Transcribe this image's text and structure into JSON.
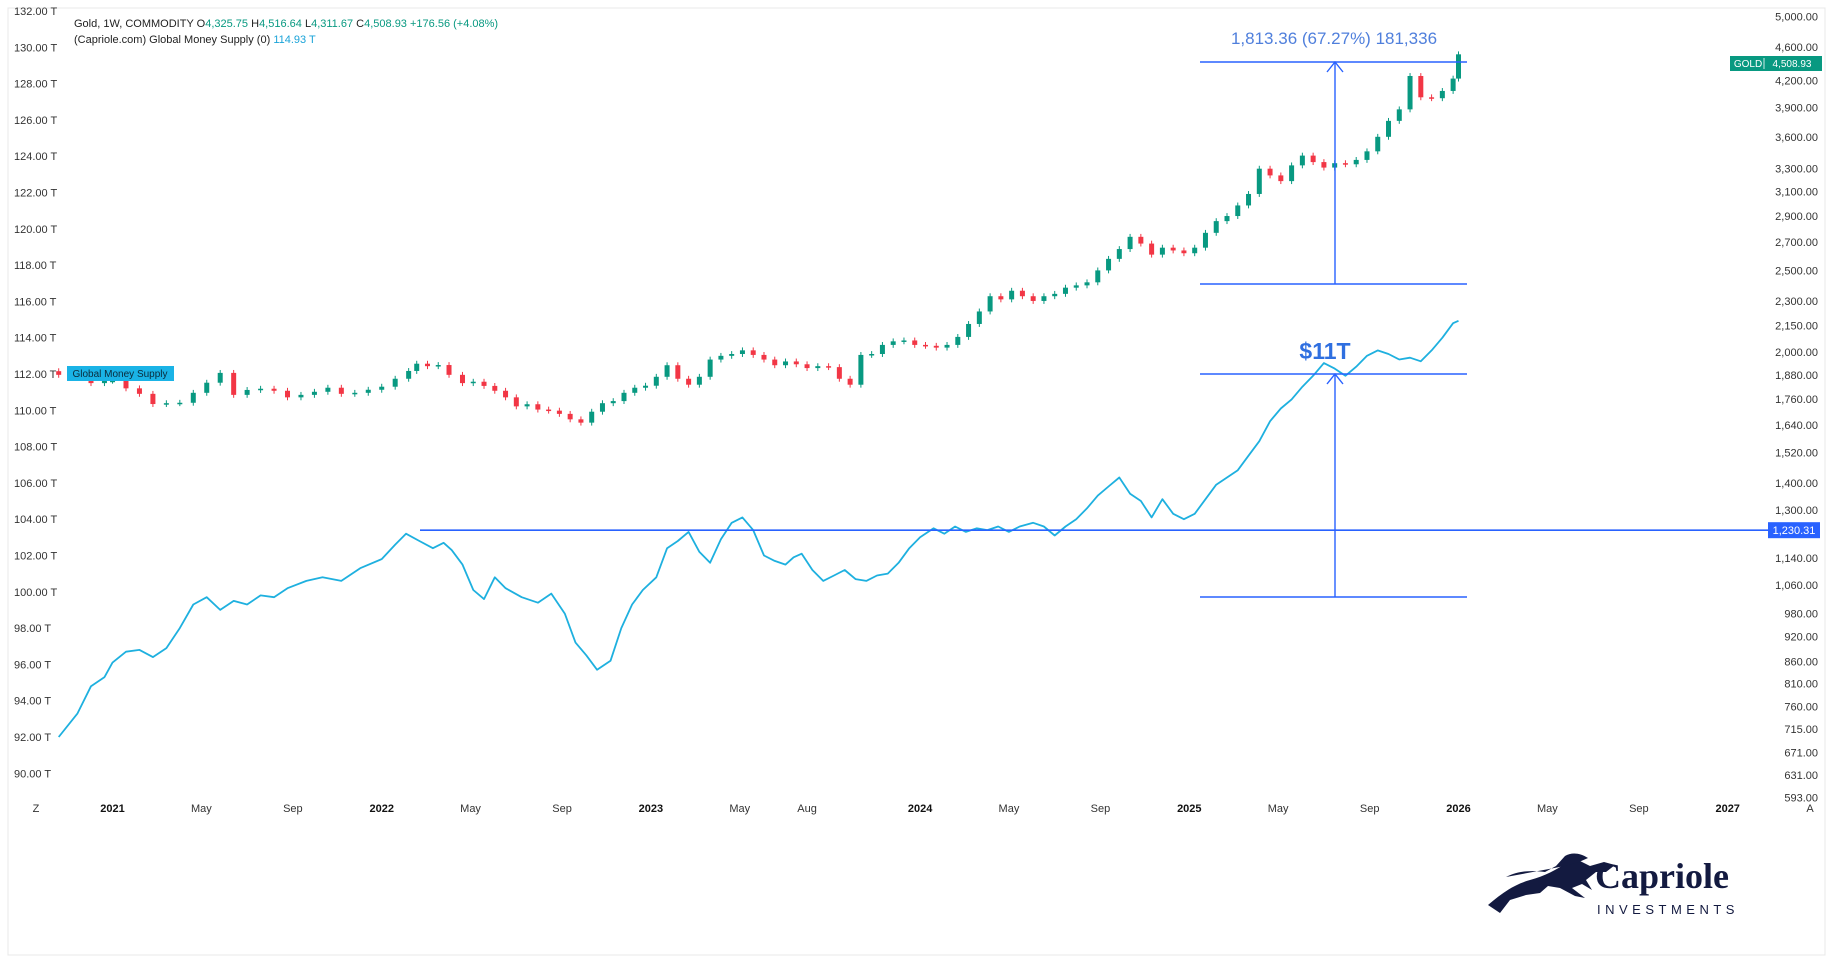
{
  "header": {
    "symbol": "Gold, 1W, COMMODITY",
    "o_label": "O",
    "open": "4,325.75",
    "h_label": "H",
    "high": "4,516.64",
    "l_label": "L",
    "low": "4,311.67",
    "c_label": "C",
    "close": "4,508.93",
    "change": "+176.56 (+4.08%)",
    "indicator": "(Capriole.com) Global Money Supply (0)",
    "indicator_value": "114.93 T"
  },
  "annotations": {
    "gold_measure": "1,813.36 (67.27%) 181,336",
    "money_measure": "$11T",
    "series_tag": "Global Money Supply",
    "gold_tag": "GOLD",
    "gold_tag_value": "4,508.93",
    "hline_tag": "1,230.31"
  },
  "logo": {
    "name": "Capriole",
    "tagline": "INVESTMENTS"
  },
  "footer": {
    "left_icon": "Z",
    "right_icon": "A"
  },
  "colors": {
    "up": "#089981",
    "down": "#f23645",
    "money": "#1eb0df",
    "measure": "#2962ff",
    "brand": "#131a40"
  },
  "chart_data": {
    "type": "line",
    "left_axis": {
      "ticks": [
        "132.00 T",
        "130.00 T",
        "128.00 T",
        "126.00 T",
        "124.00 T",
        "122.00 T",
        "120.00 T",
        "118.00 T",
        "116.00 T",
        "114.00 T",
        "112.00 T",
        "110.00 T",
        "108.00 T",
        "106.00 T",
        "104.00 T",
        "102.00 T",
        "100.00 T",
        "98.00 T",
        "96.00 T",
        "94.00 T",
        "92.00 T",
        "90.00 T"
      ],
      "ylim": [
        88.5,
        132
      ]
    },
    "right_axis": {
      "scale": "log",
      "ticks": [
        "5,000.00",
        "4,600.00",
        "4,200.00",
        "3,900.00",
        "3,600.00",
        "3,300.00",
        "3,100.00",
        "2,900.00",
        "2,700.00",
        "2,500.00",
        "2,300.00",
        "2,150.00",
        "2,000.00",
        "1,880.00",
        "1,760.00",
        "1,640.00",
        "1,520.00",
        "1,400.00",
        "1,300.00",
        "1,230.31",
        "1,140.00",
        "1,060.00",
        "980.00",
        "920.00",
        "860.00",
        "810.00",
        "760.00",
        "715.00",
        "671.00",
        "631.00",
        "593.00"
      ]
    },
    "x_axis": {
      "ticks": [
        {
          "label": "2021",
          "bold": true,
          "x": 2021.0
        },
        {
          "label": "May",
          "bold": false,
          "x": 2021.33
        },
        {
          "label": "Sep",
          "bold": false,
          "x": 2021.67
        },
        {
          "label": "2022",
          "bold": true,
          "x": 2022.0
        },
        {
          "label": "May",
          "bold": false,
          "x": 2022.33
        },
        {
          "label": "Sep",
          "bold": false,
          "x": 2022.67
        },
        {
          "label": "2023",
          "bold": true,
          "x": 2023.0
        },
        {
          "label": "May",
          "bold": false,
          "x": 2023.33
        },
        {
          "label": "Aug",
          "bold": false,
          "x": 2023.58
        },
        {
          "label": "2024",
          "bold": true,
          "x": 2024.0
        },
        {
          "label": "May",
          "bold": false,
          "x": 2024.33
        },
        {
          "label": "Sep",
          "bold": false,
          "x": 2024.67
        },
        {
          "label": "2025",
          "bold": true,
          "x": 2025.0
        },
        {
          "label": "May",
          "bold": false,
          "x": 2025.33
        },
        {
          "label": "Sep",
          "bold": false,
          "x": 2025.67
        },
        {
          "label": "2026",
          "bold": true,
          "x": 2026.0
        },
        {
          "label": "May",
          "bold": false,
          "x": 2026.33
        },
        {
          "label": "Sep",
          "bold": false,
          "x": 2026.67
        },
        {
          "label": "2027",
          "bold": true,
          "x": 2027.0
        }
      ],
      "xlim": [
        2020.79,
        2027.12
      ]
    },
    "series": [
      {
        "name": "Global Money Supply",
        "axis": "left",
        "unit": "T",
        "points": [
          [
            2020.8,
            92.0
          ],
          [
            2020.87,
            93.3
          ],
          [
            2020.92,
            94.8
          ],
          [
            2020.97,
            95.3
          ],
          [
            2021.0,
            96.1
          ],
          [
            2021.05,
            96.7
          ],
          [
            2021.1,
            96.8
          ],
          [
            2021.15,
            96.4
          ],
          [
            2021.2,
            96.9
          ],
          [
            2021.25,
            98.0
          ],
          [
            2021.3,
            99.3
          ],
          [
            2021.35,
            99.7
          ],
          [
            2021.4,
            99.0
          ],
          [
            2021.45,
            99.5
          ],
          [
            2021.5,
            99.3
          ],
          [
            2021.55,
            99.8
          ],
          [
            2021.6,
            99.7
          ],
          [
            2021.65,
            100.2
          ],
          [
            2021.72,
            100.6
          ],
          [
            2021.78,
            100.8
          ],
          [
            2021.85,
            100.6
          ],
          [
            2021.92,
            101.3
          ],
          [
            2022.0,
            101.8
          ],
          [
            2022.05,
            102.6
          ],
          [
            2022.09,
            103.2
          ],
          [
            2022.14,
            102.8
          ],
          [
            2022.19,
            102.4
          ],
          [
            2022.23,
            102.7
          ],
          [
            2022.26,
            102.3
          ],
          [
            2022.3,
            101.5
          ],
          [
            2022.34,
            100.1
          ],
          [
            2022.38,
            99.6
          ],
          [
            2022.42,
            100.8
          ],
          [
            2022.46,
            100.2
          ],
          [
            2022.52,
            99.7
          ],
          [
            2022.58,
            99.4
          ],
          [
            2022.63,
            99.9
          ],
          [
            2022.68,
            98.8
          ],
          [
            2022.72,
            97.2
          ],
          [
            2022.76,
            96.5
          ],
          [
            2022.8,
            95.7
          ],
          [
            2022.85,
            96.2
          ],
          [
            2022.89,
            98.0
          ],
          [
            2022.93,
            99.3
          ],
          [
            2022.97,
            100.1
          ],
          [
            2023.02,
            100.8
          ],
          [
            2023.06,
            102.4
          ],
          [
            2023.1,
            102.8
          ],
          [
            2023.14,
            103.3
          ],
          [
            2023.18,
            102.2
          ],
          [
            2023.22,
            101.6
          ],
          [
            2023.26,
            102.9
          ],
          [
            2023.3,
            103.8
          ],
          [
            2023.34,
            104.1
          ],
          [
            2023.38,
            103.4
          ],
          [
            2023.42,
            102.0
          ],
          [
            2023.46,
            101.7
          ],
          [
            2023.5,
            101.5
          ],
          [
            2023.53,
            101.9
          ],
          [
            2023.56,
            102.1
          ],
          [
            2023.6,
            101.2
          ],
          [
            2023.64,
            100.6
          ],
          [
            2023.68,
            100.9
          ],
          [
            2023.72,
            101.2
          ],
          [
            2023.76,
            100.7
          ],
          [
            2023.8,
            100.6
          ],
          [
            2023.84,
            100.9
          ],
          [
            2023.88,
            101.0
          ],
          [
            2023.92,
            101.6
          ],
          [
            2023.96,
            102.4
          ],
          [
            2024.0,
            103.0
          ],
          [
            2024.05,
            103.5
          ],
          [
            2024.09,
            103.2
          ],
          [
            2024.13,
            103.6
          ],
          [
            2024.17,
            103.3
          ],
          [
            2024.21,
            103.5
          ],
          [
            2024.25,
            103.4
          ],
          [
            2024.29,
            103.6
          ],
          [
            2024.33,
            103.3
          ],
          [
            2024.37,
            103.6
          ],
          [
            2024.42,
            103.8
          ],
          [
            2024.46,
            103.6
          ],
          [
            2024.5,
            103.1
          ],
          [
            2024.54,
            103.6
          ],
          [
            2024.58,
            104.0
          ],
          [
            2024.62,
            104.6
          ],
          [
            2024.66,
            105.3
          ],
          [
            2024.7,
            105.8
          ],
          [
            2024.74,
            106.3
          ],
          [
            2024.78,
            105.4
          ],
          [
            2024.82,
            105.0
          ],
          [
            2024.86,
            104.1
          ],
          [
            2024.9,
            105.1
          ],
          [
            2024.94,
            104.3
          ],
          [
            2024.98,
            104.0
          ],
          [
            2025.02,
            104.3
          ],
          [
            2025.06,
            105.1
          ],
          [
            2025.1,
            105.9
          ],
          [
            2025.14,
            106.3
          ],
          [
            2025.18,
            106.7
          ],
          [
            2025.22,
            107.5
          ],
          [
            2025.26,
            108.3
          ],
          [
            2025.3,
            109.4
          ],
          [
            2025.34,
            110.1
          ],
          [
            2025.38,
            110.6
          ],
          [
            2025.42,
            111.3
          ],
          [
            2025.46,
            111.9
          ],
          [
            2025.5,
            112.6
          ],
          [
            2025.54,
            112.3
          ],
          [
            2025.58,
            111.9
          ],
          [
            2025.62,
            112.4
          ],
          [
            2025.66,
            113.0
          ],
          [
            2025.7,
            113.3
          ],
          [
            2025.74,
            113.1
          ],
          [
            2025.78,
            112.8
          ],
          [
            2025.82,
            112.9
          ],
          [
            2025.86,
            112.7
          ],
          [
            2025.9,
            113.3
          ],
          [
            2025.94,
            114.0
          ],
          [
            2025.98,
            114.8
          ],
          [
            2026.0,
            114.93
          ]
        ]
      },
      {
        "name": "GOLD",
        "axis": "right",
        "kind": "weekly candles",
        "points": [
          [
            2020.8,
            1880
          ],
          [
            2020.87,
            1870
          ],
          [
            2020.92,
            1838
          ],
          [
            2020.97,
            1850
          ],
          [
            2021.0,
            1850
          ],
          [
            2021.05,
            1812
          ],
          [
            2021.1,
            1785
          ],
          [
            2021.15,
            1736
          ],
          [
            2021.2,
            1740
          ],
          [
            2021.25,
            1742
          ],
          [
            2021.3,
            1790
          ],
          [
            2021.35,
            1840
          ],
          [
            2021.4,
            1890
          ],
          [
            2021.45,
            1780
          ],
          [
            2021.5,
            1804
          ],
          [
            2021.55,
            1810
          ],
          [
            2021.6,
            1800
          ],
          [
            2021.65,
            1768
          ],
          [
            2021.7,
            1780
          ],
          [
            2021.75,
            1795
          ],
          [
            2021.8,
            1815
          ],
          [
            2021.85,
            1785
          ],
          [
            2021.9,
            1790
          ],
          [
            2021.95,
            1805
          ],
          [
            2022.0,
            1820
          ],
          [
            2022.05,
            1860
          ],
          [
            2022.1,
            1900
          ],
          [
            2022.13,
            1938
          ],
          [
            2022.17,
            1925
          ],
          [
            2022.21,
            1931
          ],
          [
            2022.25,
            1880
          ],
          [
            2022.3,
            1838
          ],
          [
            2022.34,
            1845
          ],
          [
            2022.38,
            1824
          ],
          [
            2022.42,
            1800
          ],
          [
            2022.46,
            1768
          ],
          [
            2022.5,
            1725
          ],
          [
            2022.54,
            1735
          ],
          [
            2022.58,
            1710
          ],
          [
            2022.62,
            1705
          ],
          [
            2022.66,
            1690
          ],
          [
            2022.7,
            1665
          ],
          [
            2022.74,
            1650
          ],
          [
            2022.78,
            1700
          ],
          [
            2022.82,
            1740
          ],
          [
            2022.86,
            1750
          ],
          [
            2022.9,
            1790
          ],
          [
            2022.94,
            1815
          ],
          [
            2022.98,
            1825
          ],
          [
            2023.02,
            1870
          ],
          [
            2023.06,
            1930
          ],
          [
            2023.1,
            1860
          ],
          [
            2023.14,
            1830
          ],
          [
            2023.18,
            1870
          ],
          [
            2023.22,
            1960
          ],
          [
            2023.26,
            1980
          ],
          [
            2023.3,
            1990
          ],
          [
            2023.34,
            2010
          ],
          [
            2023.38,
            1985
          ],
          [
            2023.42,
            1960
          ],
          [
            2023.46,
            1930
          ],
          [
            2023.5,
            1950
          ],
          [
            2023.54,
            1935
          ],
          [
            2023.58,
            1915
          ],
          [
            2023.62,
            1925
          ],
          [
            2023.66,
            1920
          ],
          [
            2023.7,
            1860
          ],
          [
            2023.74,
            1830
          ],
          [
            2023.78,
            1985
          ],
          [
            2023.82,
            1990
          ],
          [
            2023.86,
            2040
          ],
          [
            2023.9,
            2060
          ],
          [
            2023.94,
            2065
          ],
          [
            2023.98,
            2040
          ],
          [
            2024.02,
            2035
          ],
          [
            2024.06,
            2025
          ],
          [
            2024.1,
            2040
          ],
          [
            2024.14,
            2085
          ],
          [
            2024.18,
            2160
          ],
          [
            2024.22,
            2235
          ],
          [
            2024.26,
            2330
          ],
          [
            2024.3,
            2310
          ],
          [
            2024.34,
            2365
          ],
          [
            2024.38,
            2330
          ],
          [
            2024.42,
            2300
          ],
          [
            2024.46,
            2330
          ],
          [
            2024.5,
            2345
          ],
          [
            2024.54,
            2385
          ],
          [
            2024.58,
            2400
          ],
          [
            2024.62,
            2420
          ],
          [
            2024.66,
            2500
          ],
          [
            2024.7,
            2580
          ],
          [
            2024.74,
            2650
          ],
          [
            2024.78,
            2740
          ],
          [
            2024.82,
            2690
          ],
          [
            2024.86,
            2610
          ],
          [
            2024.9,
            2660
          ],
          [
            2024.94,
            2640
          ],
          [
            2024.98,
            2620
          ],
          [
            2025.02,
            2660
          ],
          [
            2025.06,
            2770
          ],
          [
            2025.1,
            2860
          ],
          [
            2025.14,
            2900
          ],
          [
            2025.18,
            2985
          ],
          [
            2025.22,
            3080
          ],
          [
            2025.26,
            3300
          ],
          [
            2025.3,
            3240
          ],
          [
            2025.34,
            3190
          ],
          [
            2025.38,
            3330
          ],
          [
            2025.42,
            3420
          ],
          [
            2025.46,
            3360
          ],
          [
            2025.5,
            3310
          ],
          [
            2025.54,
            3350
          ],
          [
            2025.58,
            3340
          ],
          [
            2025.62,
            3380
          ],
          [
            2025.66,
            3460
          ],
          [
            2025.7,
            3600
          ],
          [
            2025.74,
            3760
          ],
          [
            2025.78,
            3880
          ],
          [
            2025.82,
            4250
          ],
          [
            2025.86,
            4010
          ],
          [
            2025.9,
            4000
          ],
          [
            2025.94,
            4080
          ],
          [
            2025.98,
            4220
          ],
          [
            2026.0,
            4508.93
          ]
        ]
      }
    ]
  }
}
